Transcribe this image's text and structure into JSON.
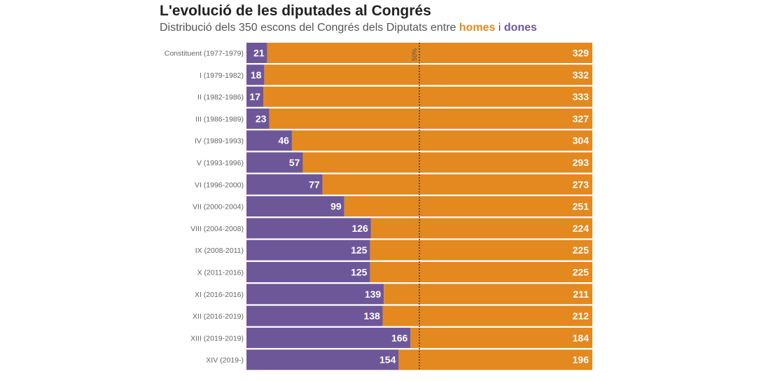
{
  "title": "L'evolució de les diputades al Congrés",
  "subtitle": {
    "prefix": "Distribució dels 350 escons del Congrés dels Diputats entre ",
    "men": "homes",
    "conj": " i ",
    "women": "dones"
  },
  "colors": {
    "men": "#e3891f",
    "women": "#6e5799",
    "reference_line": "#222222"
  },
  "chart_data": {
    "type": "bar",
    "stacked": true,
    "orientation": "horizontal",
    "total": 350,
    "reference_line": {
      "value": 175,
      "label": "50%"
    },
    "categories": [
      "Constituent (1977-1979)",
      "I (1979-1982)",
      "II (1982-1986)",
      "III (1986-1989)",
      "IV (1989-1993)",
      "V (1993-1996)",
      "VI (1996-2000)",
      "VII (2000-2004)",
      "VIII (2004-2008)",
      "IX (2008-2011)",
      "X (2011-2016)",
      "XI (2016-2016)",
      "XII (2016-2019)",
      "XIII (2019-2019)",
      "XIV (2019-)"
    ],
    "series": [
      {
        "name": "dones",
        "values": [
          21,
          18,
          17,
          23,
          46,
          57,
          77,
          99,
          126,
          125,
          125,
          139,
          138,
          166,
          154
        ]
      },
      {
        "name": "homes",
        "values": [
          329,
          332,
          333,
          327,
          304,
          293,
          273,
          251,
          224,
          225,
          225,
          211,
          212,
          184,
          196
        ]
      }
    ]
  }
}
